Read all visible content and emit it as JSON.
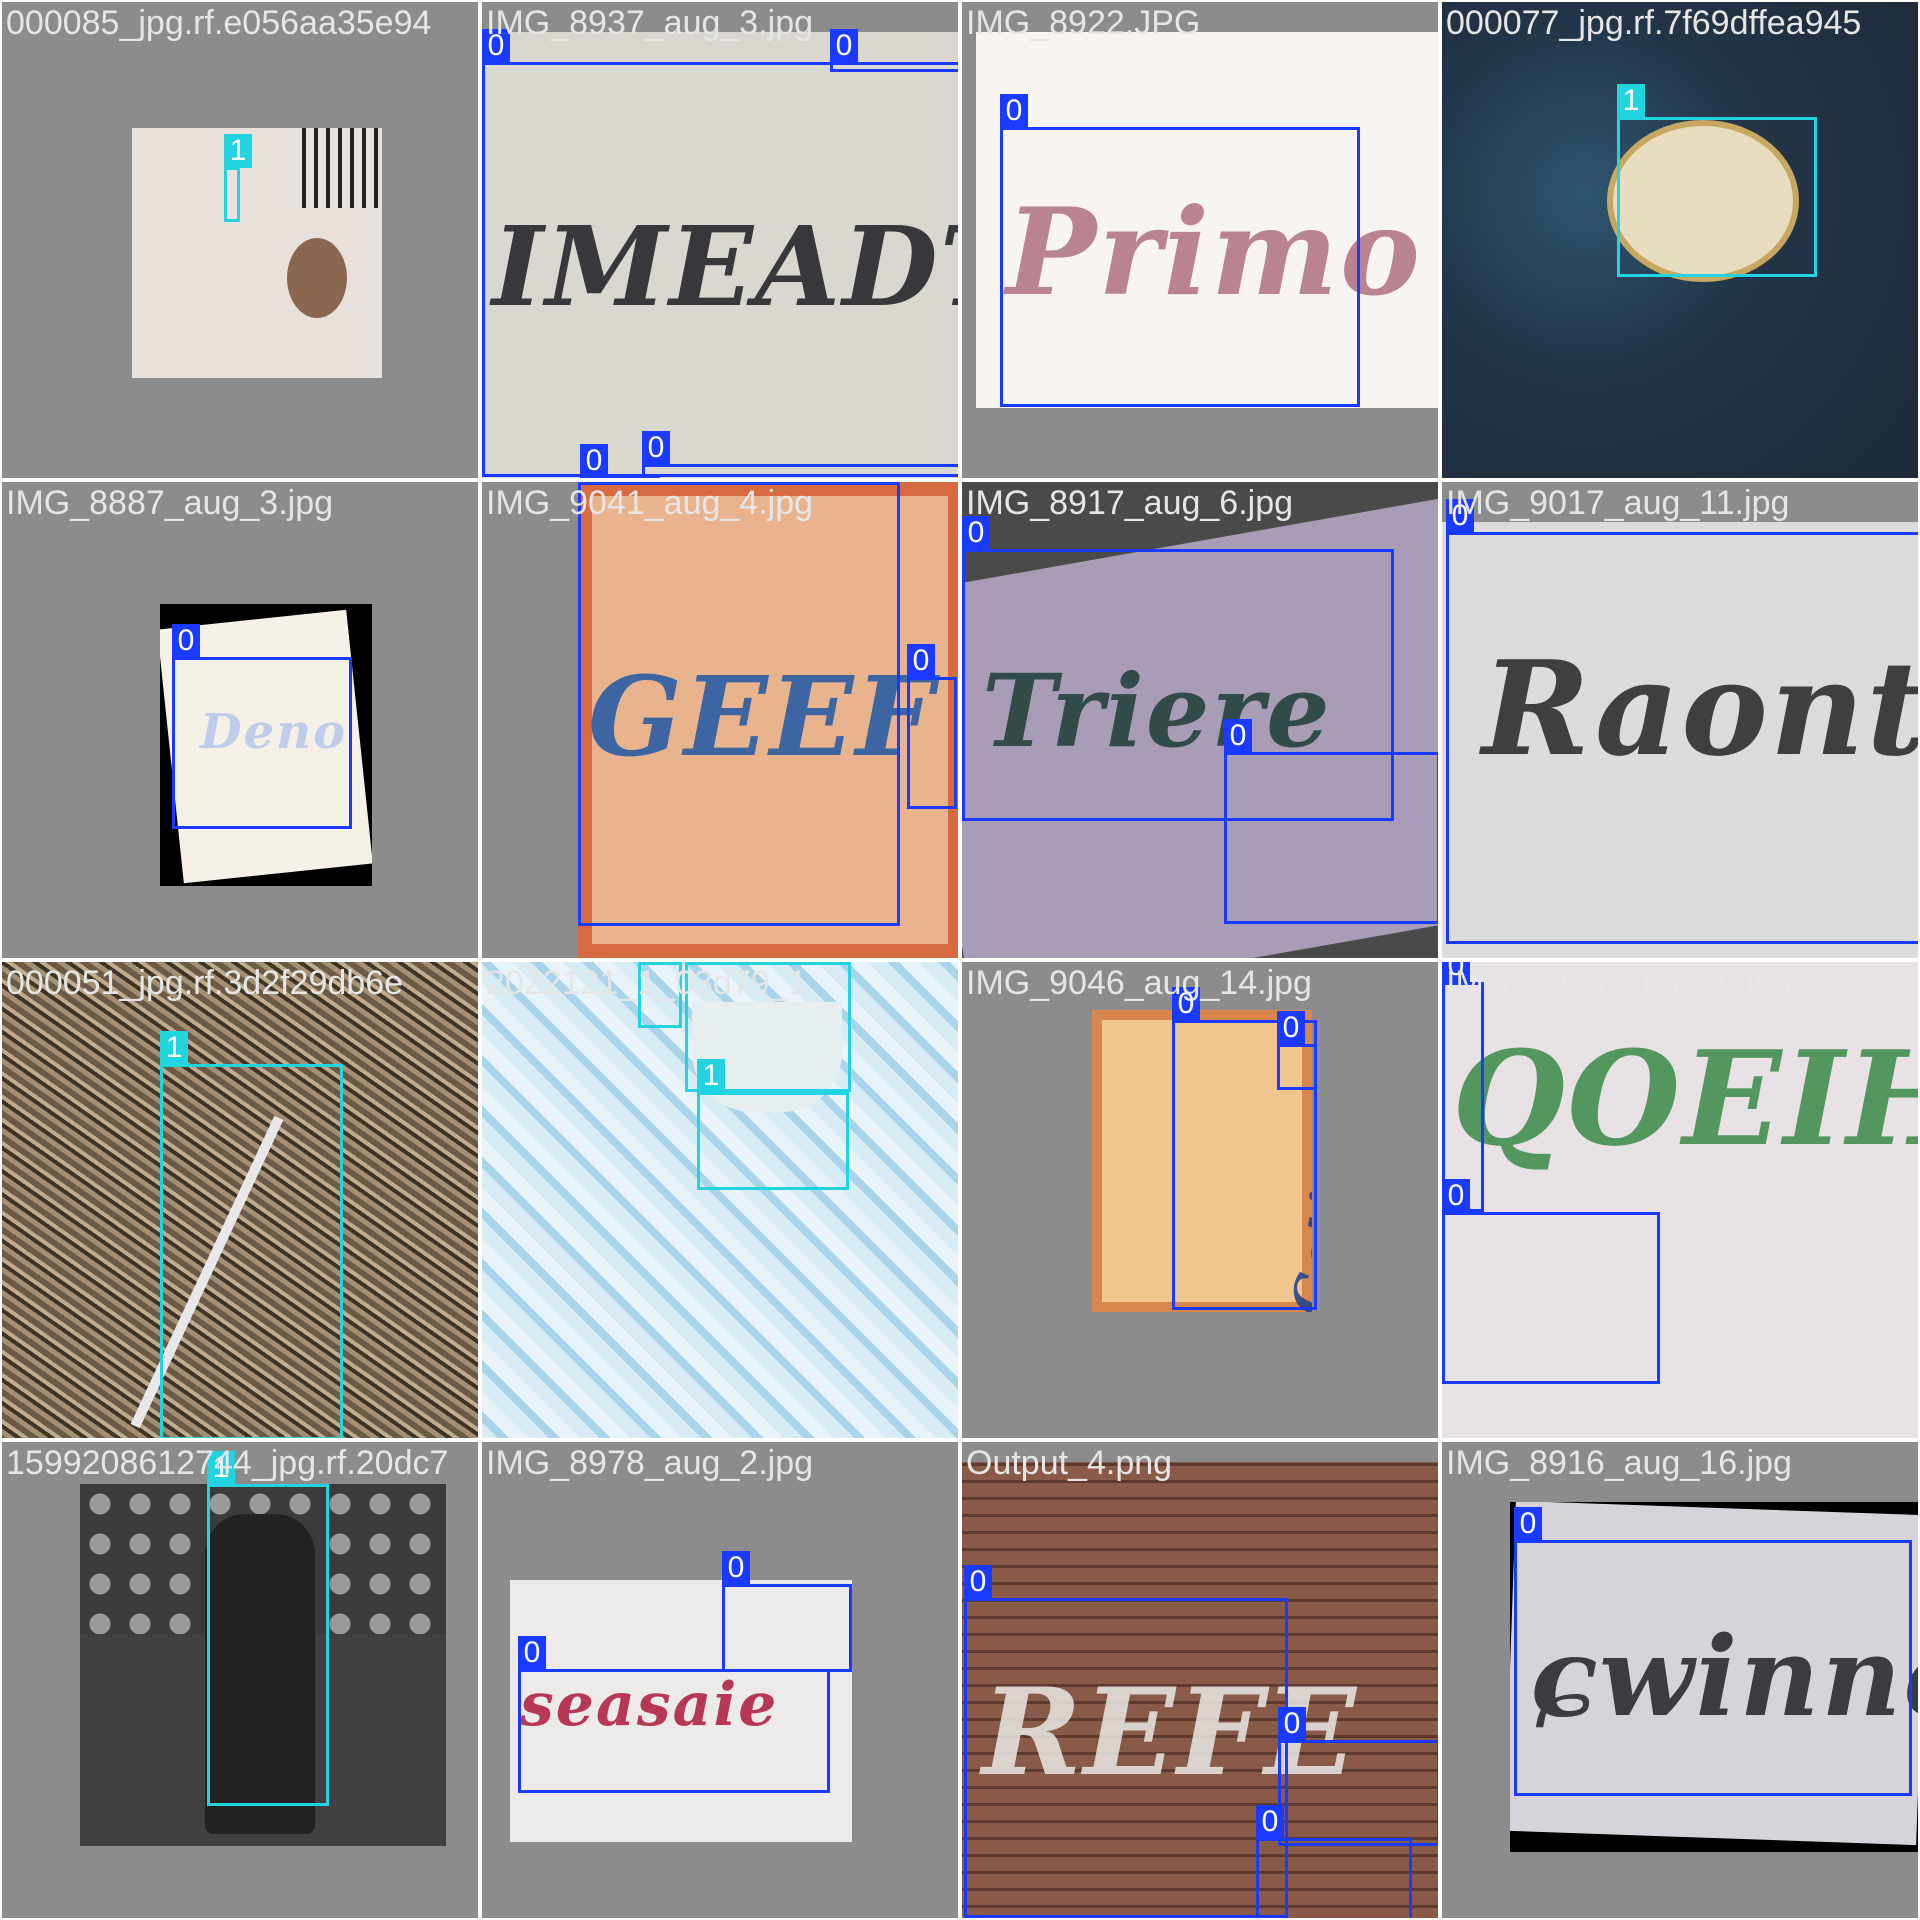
{
  "colors": {
    "class_0": "#1a3bff",
    "class_1": "#22d3e0",
    "tile_bg": "#8c8c8c",
    "label_text": "#e6e6e6"
  },
  "tiles": [
    {
      "filename": "000085_jpg.rf.e056aa35e94",
      "labels": [
        "1"
      ]
    },
    {
      "filename": "IMG_8937_aug_3.jpg",
      "labels": [
        "0",
        "0",
        "0",
        "0"
      ]
    },
    {
      "filename": "IMG_8922.JPG",
      "labels": [
        "0"
      ]
    },
    {
      "filename": "000077_jpg.rf.7f69dffea945",
      "labels": [
        "1"
      ]
    },
    {
      "filename": "IMG_8887_aug_3.jpg",
      "labels": [
        "0"
      ]
    },
    {
      "filename": "IMG_9041_aug_4.jpg",
      "labels": [
        "0",
        "0"
      ]
    },
    {
      "filename": "IMG_8917_aug_6.jpg",
      "labels": [
        "0",
        "0"
      ]
    },
    {
      "filename": "IMG_9017_aug_11.jpg",
      "labels": [
        "0"
      ]
    },
    {
      "filename": "000051_jpg.rf.3d2f29db6e",
      "labels": [
        "1"
      ]
    },
    {
      "filename": "2022121_1_03d79_1",
      "labels": [
        "1",
        "1",
        "1"
      ]
    },
    {
      "filename": "IMG_9046_aug_14.jpg",
      "labels": [
        "0",
        "0"
      ]
    },
    {
      "filename": "IMG_8933_aug_10.jpg",
      "labels": [
        "0",
        "0"
      ]
    },
    {
      "filename": "1599208612744_jpg.rf.20dc7",
      "labels": [
        "1"
      ]
    },
    {
      "filename": "IMG_8978_aug_2.jpg",
      "labels": [
        "0",
        "0"
      ]
    },
    {
      "filename": "Output_4.png",
      "labels": [
        "0",
        "0",
        "0"
      ]
    },
    {
      "filename": "IMG_8916_aug_16.jpg",
      "labels": [
        "0"
      ]
    }
  ]
}
